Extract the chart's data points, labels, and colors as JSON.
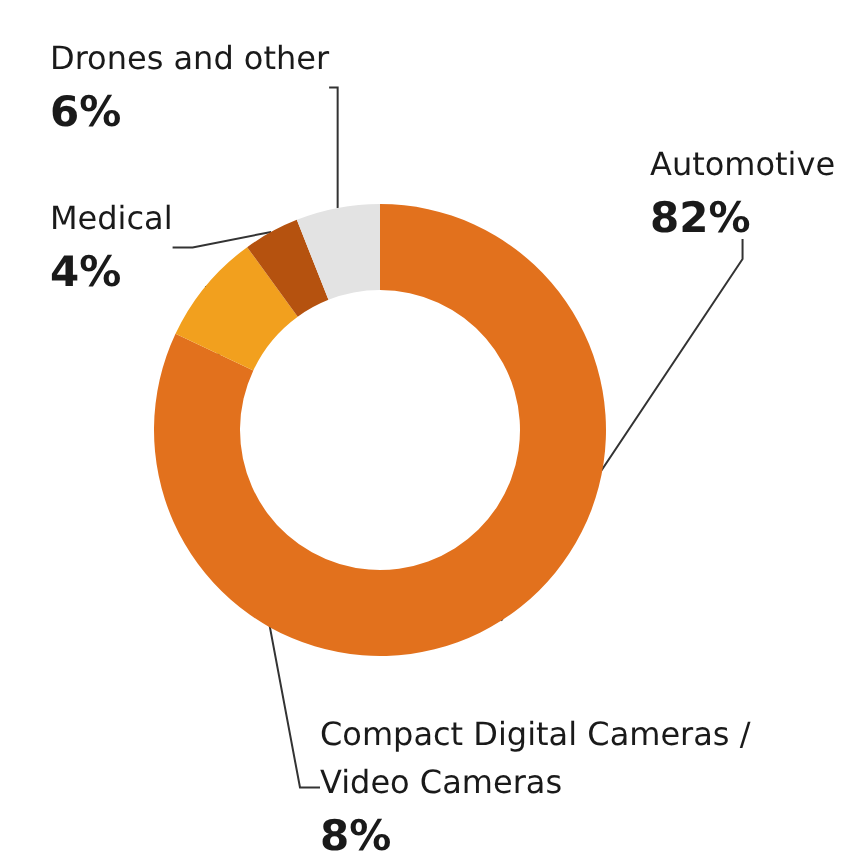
{
  "chart_data": {
    "type": "donut",
    "categories": [
      "Automotive",
      "Compact Digital Cameras /\nVideo Cameras",
      "Medical",
      "Drones and other"
    ],
    "values": [
      82,
      8,
      4,
      6
    ],
    "value_labels": [
      "82%",
      "8%",
      "4%",
      "6%"
    ],
    "colors": [
      "#e2711d",
      "#f2a01e",
      "#b5520f",
      "#e3e3e3"
    ],
    "legend": false
  }
}
